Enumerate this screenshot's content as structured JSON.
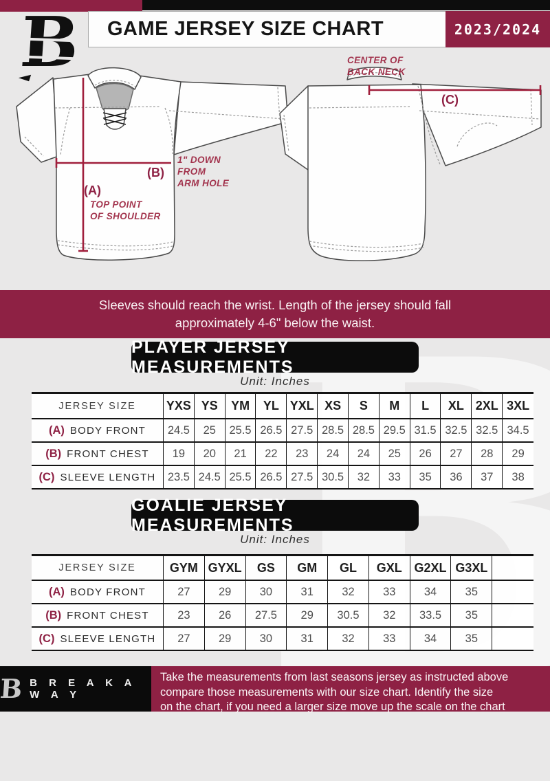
{
  "header": {
    "title": "GAME JERSEY SIZE CHART",
    "season": "2023/2024",
    "logo_letter": "B"
  },
  "colors": {
    "maroon": "#8E2144",
    "black": "#0D0D0D",
    "background": "#E9E8E8",
    "dimension_line": "#A01F3C"
  },
  "diagram": {
    "front": {
      "label_a": "(A)",
      "note_a": "TOP POINT\nOF SHOULDER",
      "label_b": "(B)",
      "note_b": "1\" DOWN\nFROM\nARM HOLE"
    },
    "back": {
      "label_c": "(C)",
      "note_c": "CENTER OF\nBACK NECK"
    }
  },
  "fit_note": "Sleeves should reach the wrist. Length of the jersey should fall\napproximately 4-6\" below the waist.",
  "player_section": {
    "heading": "PLAYER JERSEY MEASUREMENTS",
    "unit": "Unit: Inches",
    "table": {
      "size_label": "JERSEY SIZE",
      "sizes": [
        "YXS",
        "YS",
        "YM",
        "YL",
        "YXL",
        "XS",
        "S",
        "M",
        "L",
        "XL",
        "2XL",
        "3XL"
      ],
      "rows": [
        {
          "key": "(A)",
          "label": "BODY FRONT",
          "values": [
            "24.5",
            "25",
            "25.5",
            "26.5",
            "27.5",
            "28.5",
            "28.5",
            "29.5",
            "31.5",
            "32.5",
            "32.5",
            "34.5"
          ]
        },
        {
          "key": "(B)",
          "label": "FRONT CHEST",
          "values": [
            "19",
            "20",
            "21",
            "22",
            "23",
            "24",
            "24",
            "25",
            "26",
            "27",
            "28",
            "29"
          ]
        },
        {
          "key": "(C)",
          "label": "SLEEVE LENGTH",
          "values": [
            "23.5",
            "24.5",
            "25.5",
            "26.5",
            "27.5",
            "30.5",
            "32",
            "33",
            "35",
            "36",
            "37",
            "38"
          ]
        }
      ]
    }
  },
  "goalie_section": {
    "heading": "GOALIE JERSEY MEASUREMENTS",
    "unit": "Unit: Inches",
    "table": {
      "size_label": "JERSEY SIZE",
      "sizes": [
        "GYM",
        "GYXL",
        "GS",
        "GM",
        "GL",
        "GXL",
        "G2XL",
        "G3XL",
        ""
      ],
      "rows": [
        {
          "key": "(A)",
          "label": "BODY FRONT",
          "values": [
            "27",
            "29",
            "30",
            "31",
            "32",
            "33",
            "34",
            "35",
            ""
          ]
        },
        {
          "key": "(B)",
          "label": "FRONT CHEST",
          "values": [
            "23",
            "26",
            "27.5",
            "29",
            "30.5",
            "32",
            "33.5",
            "35",
            ""
          ]
        },
        {
          "key": "(C)",
          "label": "SLEEVE LENGTH",
          "values": [
            "27",
            "29",
            "30",
            "31",
            "32",
            "33",
            "34",
            "35",
            ""
          ]
        }
      ]
    }
  },
  "watermark": {
    "letter": "B"
  },
  "footer": {
    "logo_letter": "B",
    "brand": "B R E A K A W A Y",
    "note": "Take the measurements from last seasons jersey as instructed above\ncompare those measurements  with our size chart. Identify the size\non the chart, if you need a larger size move up the scale on the chart"
  }
}
